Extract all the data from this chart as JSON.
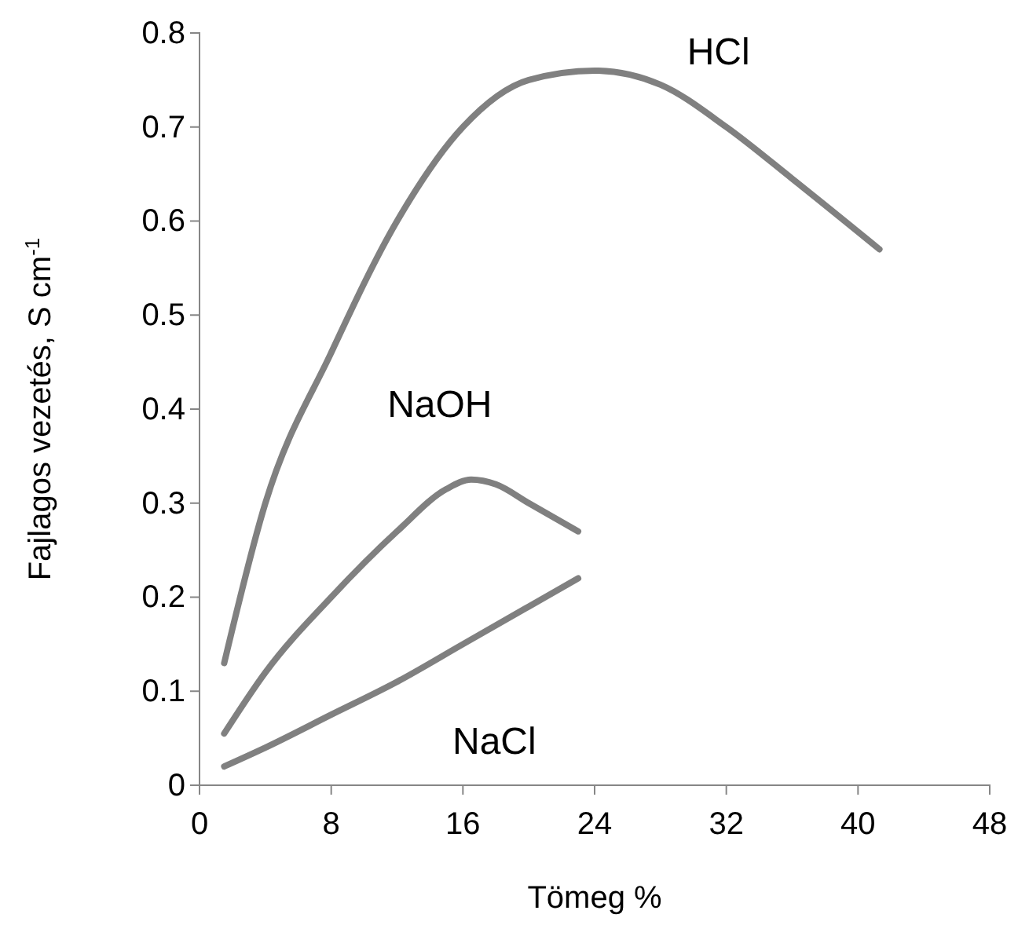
{
  "chart_data": {
    "type": "line",
    "xlabel": "Tömeg %",
    "ylabel": "Fajlagos vezetés, S cm$^{-1}$",
    "xlim": [
      0,
      48
    ],
    "xticks": [
      0,
      8,
      16,
      24,
      32,
      40,
      48
    ],
    "ylim": [
      0,
      0.8
    ],
    "yticks": [
      0,
      0.1,
      0.2,
      0.3,
      0.4,
      0.5,
      0.6,
      0.7,
      0.8
    ],
    "grid": false,
    "marker": "none",
    "line_style": "solid",
    "series": [
      {
        "name": "HCl",
        "color": "#808080",
        "x": [
          1.5,
          4,
          8,
          12,
          16,
          20,
          24,
          28,
          32,
          36,
          41.3
        ],
        "values": [
          0.13,
          0.3,
          0.46,
          0.6,
          0.7,
          0.75,
          0.76,
          0.745,
          0.7,
          0.645,
          0.57
        ]
      },
      {
        "name": "NaOH",
        "color": "#808080",
        "x": [
          1.5,
          4,
          8,
          12,
          15,
          16.5,
          18,
          20,
          23
        ],
        "values": [
          0.055,
          0.12,
          0.2,
          0.27,
          0.315,
          0.325,
          0.32,
          0.3,
          0.27
        ]
      },
      {
        "name": "NaCl",
        "color": "#808080",
        "x": [
          1.5,
          4,
          8,
          12,
          16,
          20,
          23
        ],
        "values": [
          0.02,
          0.04,
          0.075,
          0.11,
          0.15,
          0.19,
          0.22
        ]
      }
    ]
  }
}
